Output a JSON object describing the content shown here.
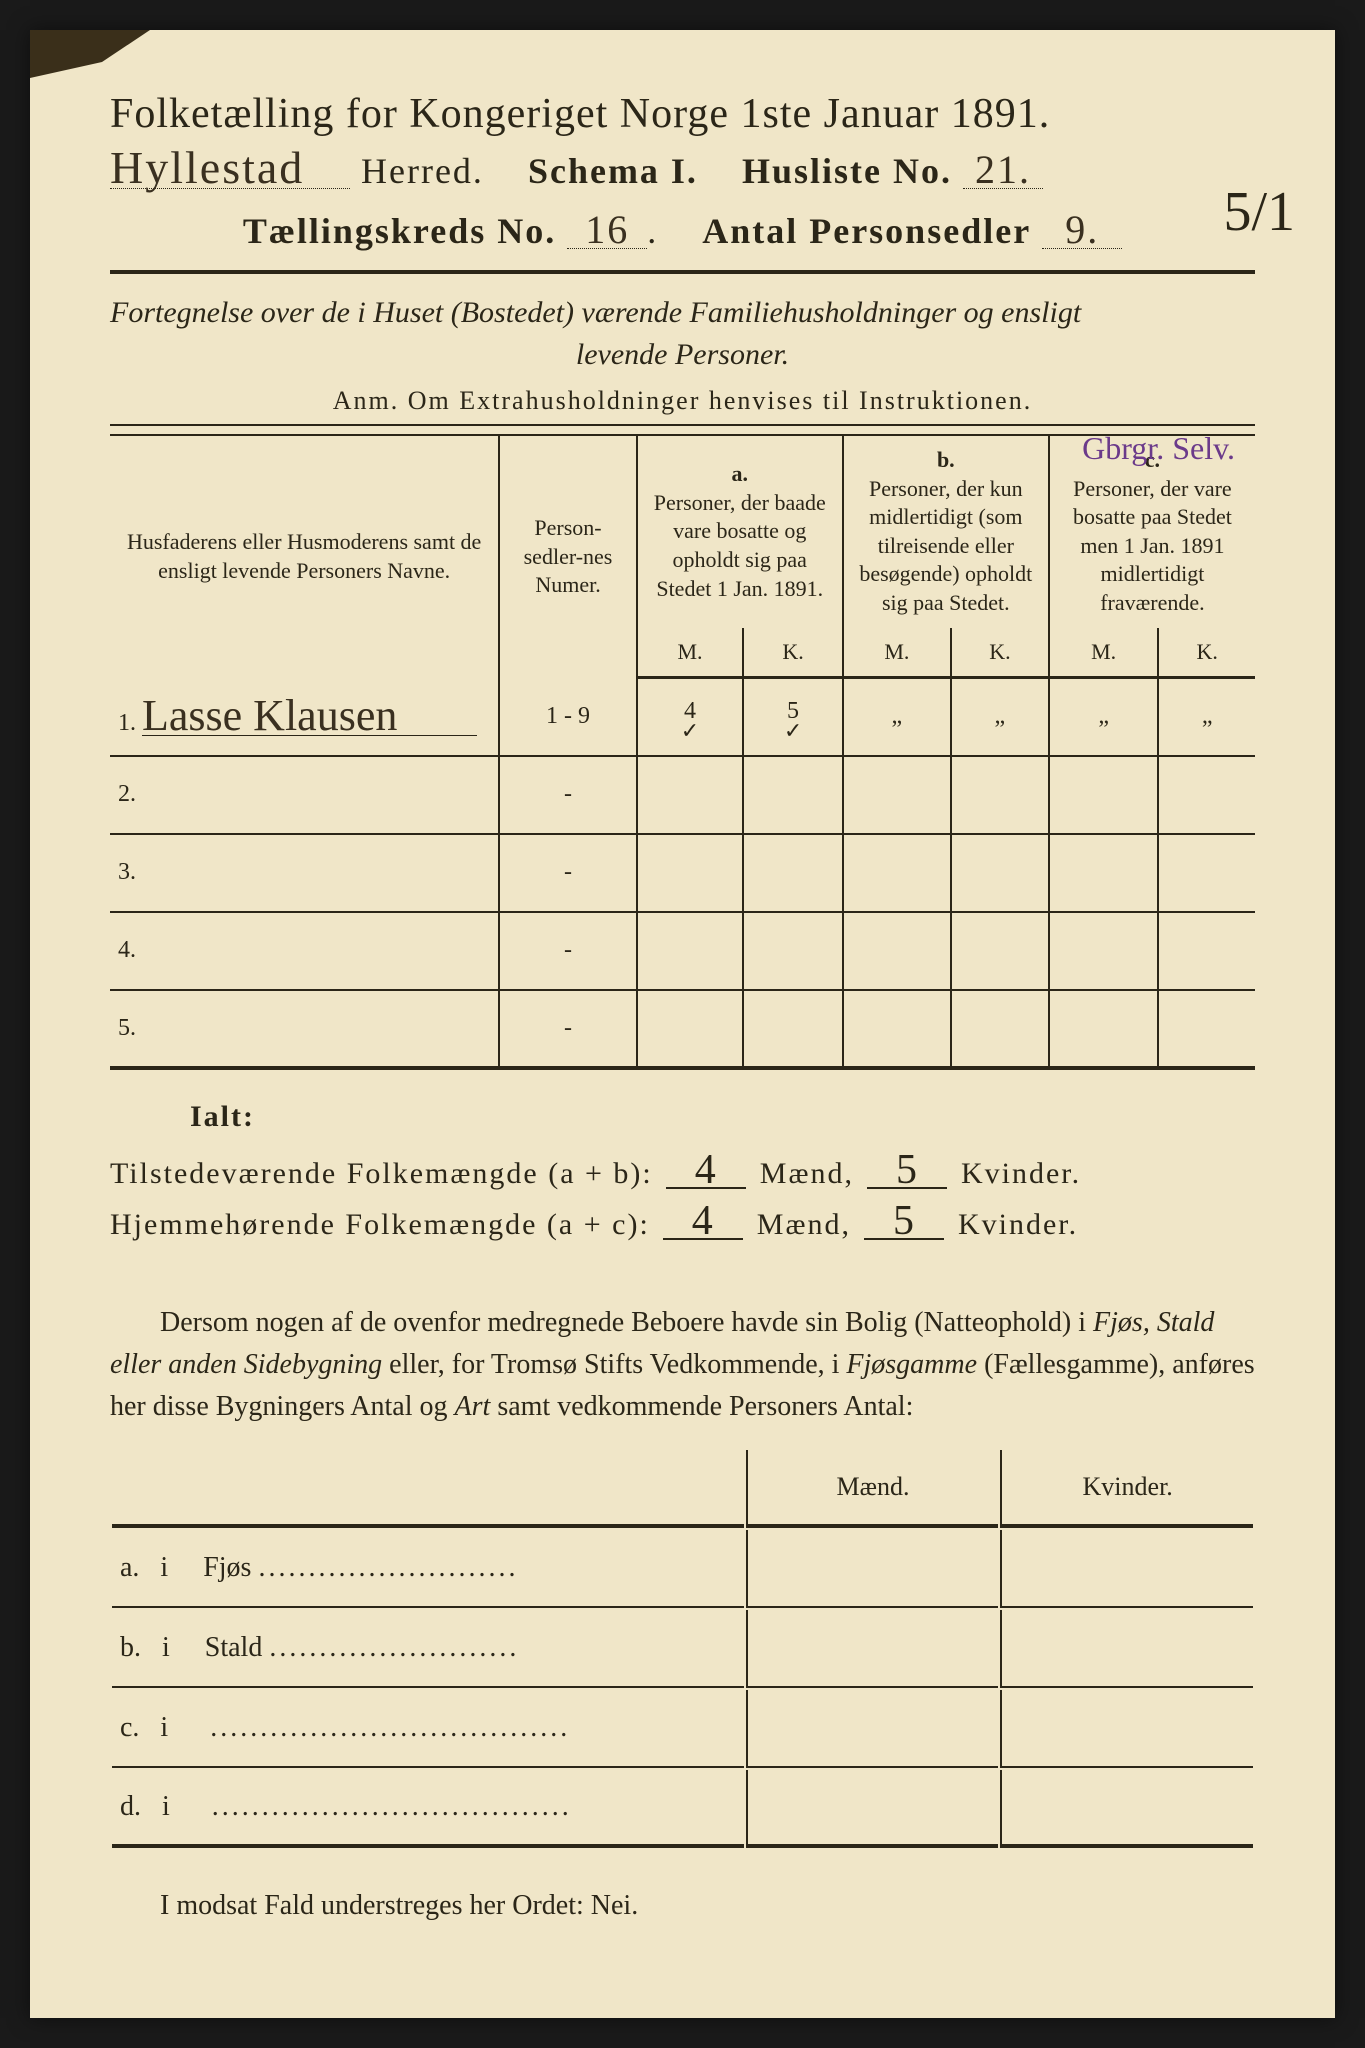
{
  "colors": {
    "paper": "#f0e6c8",
    "ink": "#2b2618",
    "handwriting": "#3a3020",
    "purple": "#6b3a8a",
    "background": "#1a1a1a"
  },
  "header": {
    "title": "Folketælling for Kongeriget Norge 1ste Januar 1891.",
    "herred_hand": "Hyllestad",
    "herred_label": "Herred.",
    "schema": "Schema I.",
    "husliste_label": "Husliste No.",
    "husliste_no": "21.",
    "kreds_label": "Tællingskreds No.",
    "kreds_no": "16",
    "antal_label": "Antal Personsedler",
    "antal_no": "9.",
    "corner": "5/1"
  },
  "subtitle": {
    "line1": "Fortegnelse over de i Huset (Bostedet) værende Familiehusholdninger og ensligt",
    "line2": "levende Personer.",
    "anm": "Anm. Om Extrahusholdninger henvises til Instruktionen."
  },
  "table": {
    "col_names": "Husfaderens eller Husmoderens samt de ensligt levende Personers Navne.",
    "col_num": "Person-sedler-nes Numer.",
    "col_a_label": "a.",
    "col_a": "Personer, der baade vare bosatte og opholdt sig paa Stedet 1 Jan. 1891.",
    "col_b_label": "b.",
    "col_b": "Personer, der kun midlertidigt (som tilreisende eller besøgende) opholdt sig paa Stedet.",
    "col_c_label": "c.",
    "col_c": "Personer, der vare bosatte paa Stedet men 1 Jan. 1891 midlertidigt fraværende.",
    "m": "M.",
    "k": "K.",
    "purple": "Gbrgr. Selv.",
    "rows": [
      {
        "n": "1.",
        "name": "Lasse Klausen",
        "num": "1 - 9",
        "am": "4",
        "ak": "5",
        "bm": "„",
        "bk": "„",
        "cm": "„",
        "ck": "„",
        "checks": true
      },
      {
        "n": "2.",
        "name": "",
        "num": "-",
        "am": "",
        "ak": "",
        "bm": "",
        "bk": "",
        "cm": "",
        "ck": ""
      },
      {
        "n": "3.",
        "name": "",
        "num": "-",
        "am": "",
        "ak": "",
        "bm": "",
        "bk": "",
        "cm": "",
        "ck": ""
      },
      {
        "n": "4.",
        "name": "",
        "num": "-",
        "am": "",
        "ak": "",
        "bm": "",
        "bk": "",
        "cm": "",
        "ck": ""
      },
      {
        "n": "5.",
        "name": "",
        "num": "-",
        "am": "",
        "ak": "",
        "bm": "",
        "bk": "",
        "cm": "",
        "ck": ""
      }
    ]
  },
  "ialt": {
    "label": "Ialt:",
    "tilstede_label": "Tilstedeværende Folkemængde (a + b):",
    "hjemme_label": "Hjemmehørende Folkemængde (a + c):",
    "tilstede_m": "4",
    "tilstede_k": "5",
    "hjemme_m": "4",
    "hjemme_k": "5",
    "maend": "Mænd,",
    "kvinder": "Kvinder."
  },
  "para": {
    "text1": "Dersom nogen af de ovenfor medregnede Beboere havde sin Bolig (Natteophold) i ",
    "italic1": "Fjøs, Stald eller anden Sidebygning",
    "text2": " eller, for Tromsø Stifts Vedkommende, i ",
    "italic2": "Fjøsgamme",
    "text3": " (Fællesgamme), anføres her disse Bygningers Antal og ",
    "italic3": "Art",
    "text4": " samt vedkommende Personers Antal:"
  },
  "dwell": {
    "maend": "Mænd.",
    "kvinder": "Kvinder.",
    "rows": [
      {
        "l": "a.",
        "i": "i",
        "t": "Fjøs",
        "dots": ".........................."
      },
      {
        "l": "b.",
        "i": "i",
        "t": "Stald",
        "dots": "........................."
      },
      {
        "l": "c.",
        "i": "i",
        "t": "",
        "dots": "...................................."
      },
      {
        "l": "d.",
        "i": "i",
        "t": "",
        "dots": "...................................."
      }
    ]
  },
  "final": "I modsat Fald understreges her Ordet: Nei."
}
